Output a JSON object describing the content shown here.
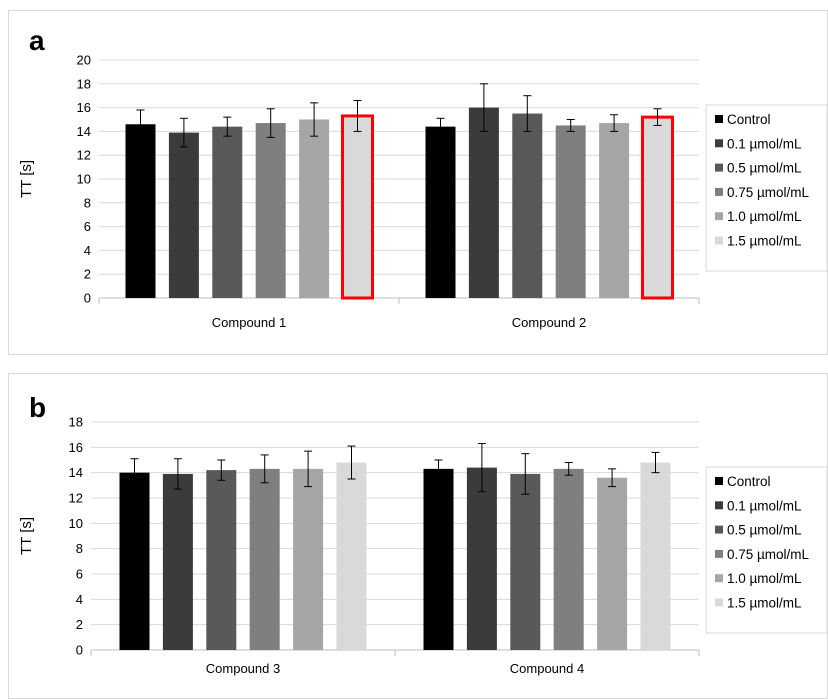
{
  "colors": {
    "series": [
      "#000000",
      "#3b3b3b",
      "#595959",
      "#7f7f7f",
      "#a6a6a6",
      "#d9d9d9"
    ],
    "highlight": "#ff0000",
    "grid": "#d9d9d9",
    "axis": "#bfbfbf",
    "error": "#000000"
  },
  "chart_data": [
    {
      "panel": "a",
      "type": "bar",
      "ylabel": "TT [s]",
      "xlabel": "",
      "ylim": [
        0,
        20
      ],
      "yticks": [
        0,
        2,
        4,
        6,
        8,
        10,
        12,
        14,
        16,
        18,
        20
      ],
      "grid": true,
      "legend": "right",
      "categories": [
        "Compound 1",
        "Compound 2"
      ],
      "series": [
        {
          "name": "Control",
          "values": [
            14.6,
            14.4
          ],
          "errors": [
            1.2,
            0.7
          ]
        },
        {
          "name": "0.1 µmol/mL",
          "values": [
            13.9,
            16.0
          ],
          "errors": [
            1.2,
            2.0
          ]
        },
        {
          "name": "0.5 µmol/mL",
          "values": [
            14.4,
            15.5
          ],
          "errors": [
            0.8,
            1.5
          ]
        },
        {
          "name": "0.75 µmol/mL",
          "values": [
            14.7,
            14.5
          ],
          "errors": [
            1.2,
            0.5
          ]
        },
        {
          "name": "1.0 µmol/mL",
          "values": [
            15.0,
            14.7
          ],
          "errors": [
            1.4,
            0.7
          ]
        },
        {
          "name": "1.5 µmol/mL",
          "values": [
            15.3,
            15.2
          ],
          "errors": [
            1.3,
            0.7
          ],
          "highlighted": true
        }
      ]
    },
    {
      "panel": "b",
      "type": "bar",
      "ylabel": "TT [s]",
      "xlabel": "",
      "ylim": [
        0,
        18
      ],
      "yticks": [
        0,
        2,
        4,
        6,
        8,
        10,
        12,
        14,
        16,
        18
      ],
      "grid": true,
      "legend": "right",
      "categories": [
        "Compound 3",
        "Compound 4"
      ],
      "series": [
        {
          "name": "Control",
          "values": [
            14.0,
            14.3
          ],
          "errors": [
            1.1,
            0.7
          ]
        },
        {
          "name": "0.1 µmol/mL",
          "values": [
            13.9,
            14.4
          ],
          "errors": [
            1.2,
            1.9
          ]
        },
        {
          "name": "0.5 µmol/mL",
          "values": [
            14.2,
            13.9
          ],
          "errors": [
            0.8,
            1.6
          ]
        },
        {
          "name": "0.75 µmol/mL",
          "values": [
            14.3,
            14.3
          ],
          "errors": [
            1.1,
            0.5
          ]
        },
        {
          "name": "1.0 µmol/mL",
          "values": [
            14.3,
            13.6
          ],
          "errors": [
            1.4,
            0.7
          ]
        },
        {
          "name": "1.5 µmol/mL",
          "values": [
            14.8,
            14.8
          ],
          "errors": [
            1.3,
            0.8
          ]
        }
      ]
    }
  ]
}
